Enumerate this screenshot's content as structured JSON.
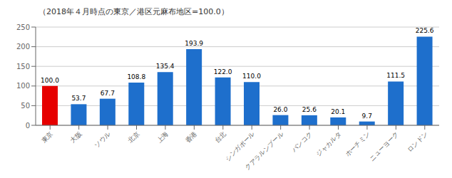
{
  "chart_data": {
    "type": "bar",
    "subtitle": "（2018年４月時点の東京／港区元麻布地区=100.0）",
    "categories": [
      "東京",
      "大阪",
      "ソウル",
      "北京",
      "上海",
      "香港",
      "台北",
      "シンガポール",
      "クアラルンプール",
      "バンコク",
      "ジャカルタ",
      "ホーチミン",
      "ニューヨーク",
      "ロンドン"
    ],
    "values": [
      100.0,
      53.7,
      67.7,
      108.8,
      135.4,
      193.9,
      122.0,
      110.0,
      26.0,
      25.6,
      20.1,
      9.7,
      111.5,
      225.6
    ],
    "value_labels": [
      "100.0",
      "53.7",
      "67.7",
      "108.8",
      "135.4",
      "193.9",
      "122.0",
      "110.0",
      "26.0",
      "25.6",
      "20.1",
      "9.7",
      "111.5",
      "225.6"
    ],
    "colors": [
      "#e60000",
      "#1e6fcc",
      "#1e6fcc",
      "#1e6fcc",
      "#1e6fcc",
      "#1e6fcc",
      "#1e6fcc",
      "#1e6fcc",
      "#1e6fcc",
      "#1e6fcc",
      "#1e6fcc",
      "#1e6fcc",
      "#1e6fcc",
      "#1e6fcc"
    ],
    "ylim": [
      0,
      250
    ],
    "yticks": [
      0,
      50,
      100,
      150,
      200,
      250
    ],
    "grid": true,
    "data_labels": true
  }
}
